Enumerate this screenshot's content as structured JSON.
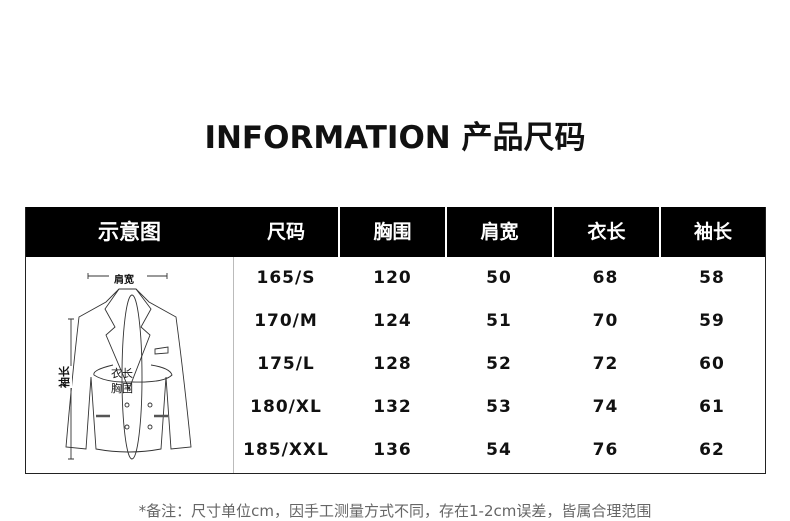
{
  "title": "INFORMATION 产品尺码",
  "table": {
    "headers": [
      "示意图",
      "尺码",
      "胸围",
      "肩宽",
      "衣长",
      "袖长"
    ],
    "rows": [
      [
        "165/S",
        "120",
        "50",
        "68",
        "58"
      ],
      [
        "170/M",
        "124",
        "51",
        "70",
        "59"
      ],
      [
        "175/L",
        "128",
        "52",
        "72",
        "60"
      ],
      [
        "180/XL",
        "132",
        "53",
        "74",
        "61"
      ],
      [
        "185/XXL",
        "136",
        "54",
        "76",
        "62"
      ]
    ]
  },
  "diagram": {
    "shoulder": "肩宽",
    "length": "衣长",
    "chest": "胸围",
    "sleeve": "袖长"
  },
  "note": "*备注：尺寸单位cm，因手工测量方式不同，存在1-2cm误差，皆属合理范围"
}
